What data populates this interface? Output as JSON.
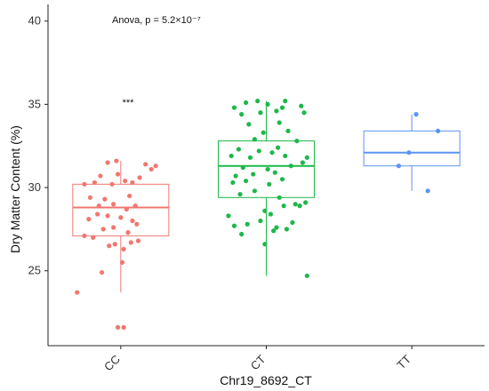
{
  "chart_data": {
    "type": "box",
    "title": "",
    "xlabel": "Chr19_8692_CT",
    "ylabel": "Dry Matter Content (%)",
    "ylim": [
      20.5,
      41.0
    ],
    "yticks": [
      25,
      30,
      35,
      40
    ],
    "categories": [
      "CC",
      "CT",
      "TT"
    ],
    "annotation": "Anova, p = 5.2×10⁻⁷",
    "significance_label": "***",
    "significance_category": "CC",
    "grid": false,
    "legend": "none",
    "series": [
      {
        "category": "CC",
        "color": "#f0776f",
        "box": {
          "whisker_low": 23.7,
          "q1": 27.1,
          "median": 28.8,
          "q3": 30.2,
          "whisker_high": 31.6
        },
        "points": [
          {
            "x": -0.3,
            "y": 23.7
          },
          {
            "x": -0.02,
            "y": 21.6
          },
          {
            "x": 0.02,
            "y": 21.6
          },
          {
            "x": -0.13,
            "y": 24.9
          },
          {
            "x": 0.01,
            "y": 25.5
          },
          {
            "x": -0.08,
            "y": 26.5
          },
          {
            "x": -0.04,
            "y": 26.6
          },
          {
            "x": 0.02,
            "y": 26.3
          },
          {
            "x": 0.07,
            "y": 26.7
          },
          {
            "x": 0.12,
            "y": 26.8
          },
          {
            "x": -0.25,
            "y": 27.1
          },
          {
            "x": -0.19,
            "y": 27.0
          },
          {
            "x": -0.12,
            "y": 27.5
          },
          {
            "x": -0.05,
            "y": 27.6
          },
          {
            "x": 0.05,
            "y": 27.3
          },
          {
            "x": 0.11,
            "y": 27.8
          },
          {
            "x": -0.22,
            "y": 28.1
          },
          {
            "x": -0.16,
            "y": 28.4
          },
          {
            "x": -0.09,
            "y": 28.3
          },
          {
            "x": 0.0,
            "y": 28.2
          },
          {
            "x": 0.08,
            "y": 28.0
          },
          {
            "x": -0.15,
            "y": 28.9
          },
          {
            "x": -0.05,
            "y": 29.0
          },
          {
            "x": 0.04,
            "y": 28.7
          },
          {
            "x": 0.1,
            "y": 28.9
          },
          {
            "x": -0.21,
            "y": 29.4
          },
          {
            "x": -0.11,
            "y": 29.3
          },
          {
            "x": 0.06,
            "y": 29.5
          },
          {
            "x": -0.25,
            "y": 30.2
          },
          {
            "x": -0.18,
            "y": 30.3
          },
          {
            "x": -0.06,
            "y": 30.2
          },
          {
            "x": 0.03,
            "y": 30.4
          },
          {
            "x": 0.08,
            "y": 30.3
          },
          {
            "x": -0.14,
            "y": 30.7
          },
          {
            "x": -0.02,
            "y": 30.8
          },
          {
            "x": 0.13,
            "y": 30.6
          },
          {
            "x": 0.21,
            "y": 31.1
          },
          {
            "x": 0.24,
            "y": 31.3
          },
          {
            "x": -0.09,
            "y": 31.5
          },
          {
            "x": -0.03,
            "y": 31.6
          },
          {
            "x": 0.17,
            "y": 31.4
          }
        ]
      },
      {
        "category": "CT",
        "color": "#1db84a",
        "box": {
          "whisker_low": 24.7,
          "q1": 29.4,
          "median": 31.3,
          "q3": 32.8,
          "whisker_high": 35.2
        },
        "points": [
          {
            "x": 0.28,
            "y": 24.7
          },
          {
            "x": -0.01,
            "y": 26.6
          },
          {
            "x": -0.17,
            "y": 27.2
          },
          {
            "x": 0.05,
            "y": 27.4
          },
          {
            "x": 0.14,
            "y": 27.5
          },
          {
            "x": -0.22,
            "y": 27.7
          },
          {
            "x": -0.13,
            "y": 27.8
          },
          {
            "x": -0.04,
            "y": 28.0
          },
          {
            "x": 0.07,
            "y": 27.6
          },
          {
            "x": 0.18,
            "y": 27.9
          },
          {
            "x": -0.26,
            "y": 28.3
          },
          {
            "x": 0.03,
            "y": 28.4
          },
          {
            "x": -0.01,
            "y": 28.6
          },
          {
            "x": 0.23,
            "y": 28.9
          },
          {
            "x": 0.27,
            "y": 29.1
          },
          {
            "x": 0.2,
            "y": 29.0
          },
          {
            "x": 0.12,
            "y": 28.9
          },
          {
            "x": -0.18,
            "y": 29.6
          },
          {
            "x": -0.08,
            "y": 29.8
          },
          {
            "x": 0.09,
            "y": 29.4
          },
          {
            "x": -0.23,
            "y": 30.3
          },
          {
            "x": -0.14,
            "y": 30.4
          },
          {
            "x": 0.02,
            "y": 30.2
          },
          {
            "x": 0.11,
            "y": 30.5
          },
          {
            "x": -0.21,
            "y": 30.7
          },
          {
            "x": -0.09,
            "y": 30.8
          },
          {
            "x": 0.06,
            "y": 30.9
          },
          {
            "x": -0.16,
            "y": 31.2
          },
          {
            "x": 0.01,
            "y": 31.1
          },
          {
            "x": 0.17,
            "y": 31.3
          },
          {
            "x": 0.25,
            "y": 31.5
          },
          {
            "x": -0.24,
            "y": 31.9
          },
          {
            "x": -0.11,
            "y": 31.8
          },
          {
            "x": 0.04,
            "y": 32.1
          },
          {
            "x": 0.13,
            "y": 31.9
          },
          {
            "x": 0.28,
            "y": 31.8
          },
          {
            "x": -0.19,
            "y": 32.3
          },
          {
            "x": -0.05,
            "y": 32.2
          },
          {
            "x": 0.08,
            "y": 32.4
          },
          {
            "x": -0.08,
            "y": 32.9
          },
          {
            "x": 0.21,
            "y": 32.8
          },
          {
            "x": -0.02,
            "y": 33.3
          },
          {
            "x": 0.15,
            "y": 33.4
          },
          {
            "x": -0.12,
            "y": 33.8
          },
          {
            "x": 0.09,
            "y": 33.9
          },
          {
            "x": -0.17,
            "y": 34.4
          },
          {
            "x": -0.04,
            "y": 34.5
          },
          {
            "x": 0.07,
            "y": 34.6
          },
          {
            "x": 0.26,
            "y": 34.5
          },
          {
            "x": 0.24,
            "y": 34.9
          },
          {
            "x": -0.22,
            "y": 34.8
          },
          {
            "x": 0.11,
            "y": 34.8
          },
          {
            "x": -0.14,
            "y": 35.1
          },
          {
            "x": -0.06,
            "y": 35.2
          },
          {
            "x": 0.01,
            "y": 35.0
          },
          {
            "x": 0.13,
            "y": 35.2
          }
        ]
      },
      {
        "category": "TT",
        "color": "#5b95f0",
        "box": {
          "whisker_low": 29.8,
          "q1": 31.3,
          "median": 32.1,
          "q3": 33.4,
          "whisker_high": 34.4
        },
        "points": [
          {
            "x": 0.03,
            "y": 34.4
          },
          {
            "x": 0.18,
            "y": 33.4
          },
          {
            "x": -0.02,
            "y": 32.1
          },
          {
            "x": -0.09,
            "y": 31.3
          },
          {
            "x": 0.11,
            "y": 29.8
          }
        ]
      }
    ]
  }
}
